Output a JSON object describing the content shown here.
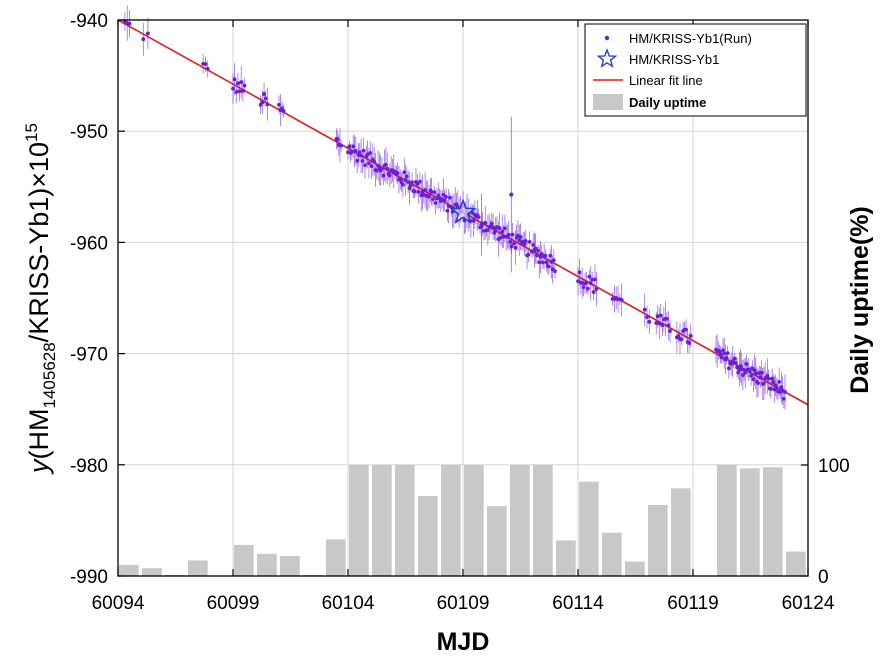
{
  "chart_data": {
    "type": "scatter",
    "xlabel": "MJD",
    "ylabel_left": {
      "prefix": "y(HM",
      "sub": "1405628",
      "mid": "/KRISS-Yb1)×10",
      "sup": "15"
    },
    "ylabel_right": "Daily uptime(%)",
    "xlim": [
      60094,
      60124
    ],
    "ylim_left": [
      -990,
      -940
    ],
    "ylim_right": [
      0,
      100
    ],
    "x_ticks": [
      "60094",
      "60099",
      "60104",
      "60109",
      "60114",
      "60119",
      "60124"
    ],
    "y_ticks_left": [
      "-940",
      "-950",
      "-960",
      "-970",
      "-980",
      "-990"
    ],
    "y_ticks_right": [
      "100",
      "0"
    ],
    "grid": true,
    "legend_placement": "top-right",
    "legend": {
      "run": "HM/KRISS-Yb1(Run)",
      "star": "HM/KRISS-Yb1",
      "fit": "Linear fit line",
      "uptime": "Daily uptime"
    },
    "colors": {
      "run": "#6a1fd6",
      "fit": "#e8161a",
      "star": "#2a3fd0",
      "bar": "#c8c8c8",
      "grid": "#d6d6d6"
    },
    "fit_line": {
      "x": [
        60094,
        60124
      ],
      "y": [
        -940.0,
        -974.6
      ]
    },
    "star_point": {
      "x": 60109.0,
      "y": -957.3
    },
    "outliers": [
      {
        "x": 60111.1,
        "y": -955.7,
        "err": 7.0
      },
      {
        "x": 60109.8,
        "y": -958.4,
        "err": 2.8
      }
    ],
    "run_segments": [
      {
        "x0": 60094.3,
        "x1": 60094.5,
        "n": 3
      },
      {
        "x0": 60095.1,
        "x1": 60095.3,
        "n": 2
      },
      {
        "x0": 60097.7,
        "x1": 60097.9,
        "n": 3
      },
      {
        "x0": 60099.0,
        "x1": 60099.5,
        "n": 8
      },
      {
        "x0": 60100.2,
        "x1": 60100.5,
        "n": 5
      },
      {
        "x0": 60101.0,
        "x1": 60101.2,
        "n": 4
      },
      {
        "x0": 60103.5,
        "x1": 60103.7,
        "n": 5
      },
      {
        "x0": 60104.0,
        "x1": 60111.9,
        "n": 140
      },
      {
        "x0": 60112.0,
        "x1": 60113.0,
        "n": 20
      },
      {
        "x0": 60114.0,
        "x1": 60114.8,
        "n": 14
      },
      {
        "x0": 60115.5,
        "x1": 60115.9,
        "n": 6
      },
      {
        "x0": 60116.9,
        "x1": 60117.1,
        "n": 3
      },
      {
        "x0": 60117.4,
        "x1": 60118.0,
        "n": 10
      },
      {
        "x0": 60118.3,
        "x1": 60118.9,
        "n": 10
      },
      {
        "x0": 60120.0,
        "x1": 60123.0,
        "n": 60
      }
    ],
    "uptime": [
      {
        "x0": 60094.0,
        "x1": 60094.9,
        "v": 10
      },
      {
        "x0": 60095.0,
        "x1": 60095.9,
        "v": 7
      },
      {
        "x0": 60096.0,
        "x1": 60096.9,
        "v": 1
      },
      {
        "x0": 60097.0,
        "x1": 60097.9,
        "v": 14
      },
      {
        "x0": 60098.0,
        "x1": 60098.9,
        "v": 0
      },
      {
        "x0": 60099.0,
        "x1": 60099.9,
        "v": 28
      },
      {
        "x0": 60100.0,
        "x1": 60100.9,
        "v": 20
      },
      {
        "x0": 60101.0,
        "x1": 60101.9,
        "v": 18
      },
      {
        "x0": 60102.0,
        "x1": 60102.9,
        "v": 1
      },
      {
        "x0": 60103.0,
        "x1": 60103.9,
        "v": 33
      },
      {
        "x0": 60104.0,
        "x1": 60104.9,
        "v": 100
      },
      {
        "x0": 60105.0,
        "x1": 60105.9,
        "v": 100
      },
      {
        "x0": 60106.0,
        "x1": 60106.9,
        "v": 100
      },
      {
        "x0": 60107.0,
        "x1": 60107.9,
        "v": 72
      },
      {
        "x0": 60108.0,
        "x1": 60108.9,
        "v": 100
      },
      {
        "x0": 60109.0,
        "x1": 60109.9,
        "v": 100
      },
      {
        "x0": 60110.0,
        "x1": 60110.9,
        "v": 63
      },
      {
        "x0": 60111.0,
        "x1": 60111.9,
        "v": 100
      },
      {
        "x0": 60112.0,
        "x1": 60112.9,
        "v": 100
      },
      {
        "x0": 60113.0,
        "x1": 60113.9,
        "v": 32
      },
      {
        "x0": 60114.0,
        "x1": 60114.9,
        "v": 85
      },
      {
        "x0": 60115.0,
        "x1": 60115.9,
        "v": 39
      },
      {
        "x0": 60116.0,
        "x1": 60116.9,
        "v": 13
      },
      {
        "x0": 60117.0,
        "x1": 60117.9,
        "v": 64
      },
      {
        "x0": 60118.0,
        "x1": 60118.9,
        "v": 79
      },
      {
        "x0": 60119.0,
        "x1": 60119.9,
        "v": 0
      },
      {
        "x0": 60120.0,
        "x1": 60120.9,
        "v": 100
      },
      {
        "x0": 60121.0,
        "x1": 60121.9,
        "v": 97
      },
      {
        "x0": 60122.0,
        "x1": 60122.9,
        "v": 98
      },
      {
        "x0": 60123.0,
        "x1": 60123.9,
        "v": 22
      }
    ]
  }
}
